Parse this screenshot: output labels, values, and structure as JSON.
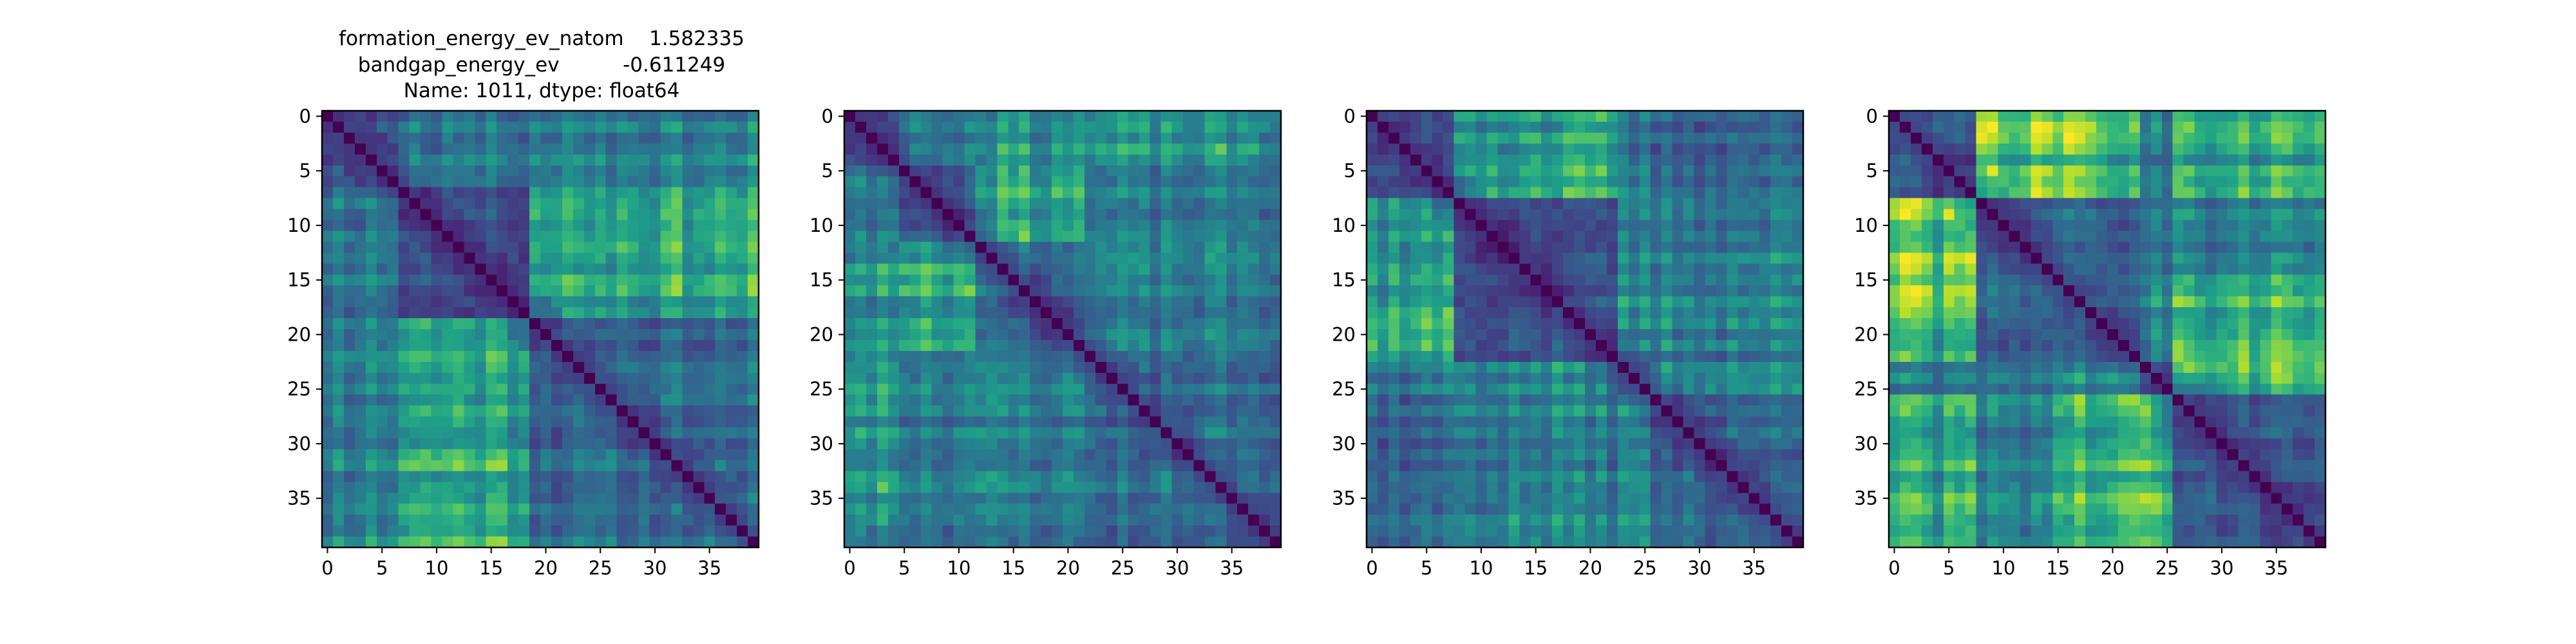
{
  "title_lines": [
    "formation_energy_ev_natom    1.582335",
    "bandgap_energy_ev          -0.611249",
    "Name: 1011, dtype: float64"
  ],
  "chart_data": [
    {
      "type": "heatmap",
      "colormap": "viridis",
      "size": 40,
      "seed": 11,
      "blocks": [
        0,
        7,
        19,
        40
      ],
      "xticks": [
        0,
        5,
        10,
        15,
        20,
        25,
        30,
        35
      ],
      "yticks": [
        0,
        5,
        10,
        15,
        20,
        25,
        30,
        35
      ],
      "title": "",
      "xlabel": "",
      "ylabel": "",
      "grid": false
    },
    {
      "type": "heatmap",
      "colormap": "viridis",
      "size": 40,
      "seed": 23,
      "blocks": [
        0,
        5,
        12,
        22,
        40
      ],
      "xticks": [
        0,
        5,
        10,
        15,
        20,
        25,
        30,
        35
      ],
      "yticks": [
        0,
        5,
        10,
        15,
        20,
        25,
        30,
        35
      ],
      "title": "",
      "xlabel": "",
      "ylabel": "",
      "grid": false
    },
    {
      "type": "heatmap",
      "colormap": "viridis",
      "size": 40,
      "seed": 37,
      "blocks": [
        0,
        8,
        23,
        26,
        40
      ],
      "xticks": [
        0,
        5,
        10,
        15,
        20,
        25,
        30,
        35
      ],
      "yticks": [
        0,
        5,
        10,
        15,
        20,
        25,
        30,
        35
      ],
      "title": "",
      "xlabel": "",
      "ylabel": "",
      "grid": false
    },
    {
      "type": "heatmap",
      "colormap": "viridis",
      "size": 40,
      "seed": 41,
      "blocks": [
        0,
        8,
        15,
        23,
        26,
        40
      ],
      "xticks": [
        0,
        5,
        10,
        15,
        20,
        25,
        30,
        35
      ],
      "yticks": [
        0,
        5,
        10,
        15,
        20,
        25,
        30,
        35
      ],
      "title": "",
      "xlabel": "",
      "ylabel": "",
      "grid": false
    }
  ]
}
